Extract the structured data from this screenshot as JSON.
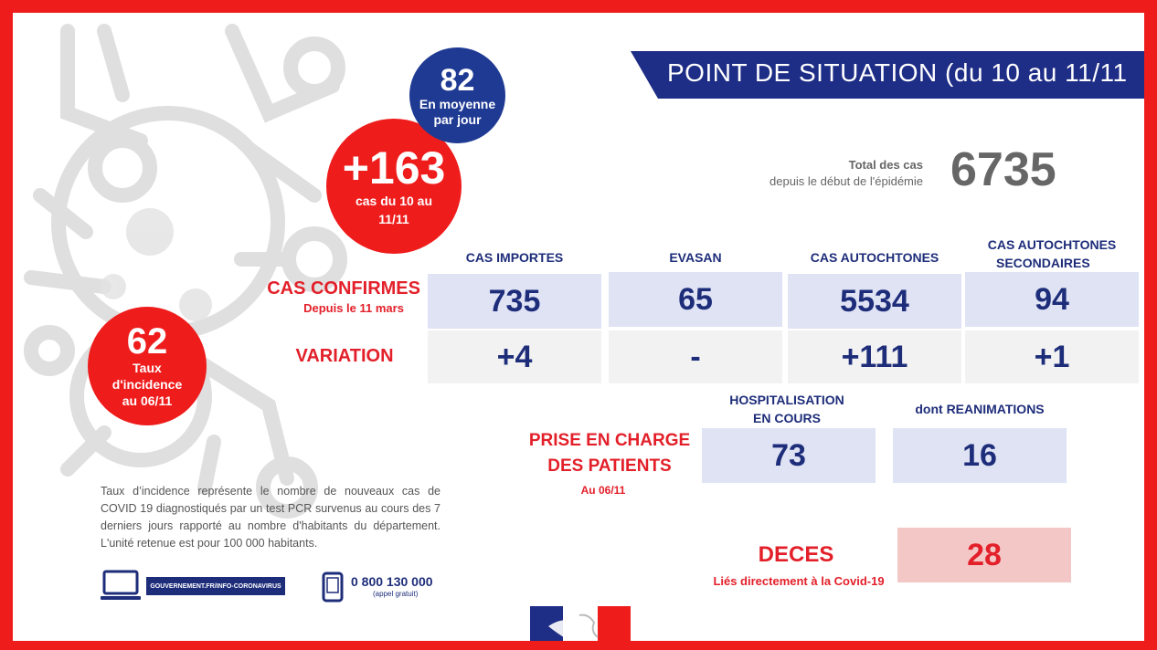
{
  "banner": {
    "title": "POINT DE SITUATION (du 10 au 11/11"
  },
  "average": {
    "value": "82",
    "label_line1": "En moyenne",
    "label_line2": "par jour"
  },
  "new_cases": {
    "value": "+163",
    "label": "cas du 10 au 11/11"
  },
  "incidence": {
    "value": "62",
    "label_line1": "Taux",
    "label_line2": "d'incidence",
    "label_line3": "au 06/11"
  },
  "total": {
    "label_line1": "Total des cas",
    "label_line2": "depuis le début de l'épidémie",
    "value": "6735"
  },
  "confirmed": {
    "row_label": "CAS CONFIRMES",
    "row_sublabel": "Depuis le 11 mars",
    "variation_label": "VARIATION",
    "columns": [
      {
        "header_line1": "CAS IMPORTES",
        "header_line2": "",
        "value": "735",
        "variation": "+4"
      },
      {
        "header_line1": "EVASAN",
        "header_line2": "",
        "value": "65",
        "variation": "-"
      },
      {
        "header_line1": "CAS AUTOCHTONES",
        "header_line2": "",
        "value": "5534",
        "variation": "+111"
      },
      {
        "header_line1": "CAS AUTOCHTONES",
        "header_line2": "SECONDAIRES",
        "value": "94",
        "variation": "+1"
      }
    ]
  },
  "patients": {
    "label_line1": "PRISE EN CHARGE",
    "label_line2": "DES PATIENTS",
    "date": "Au 06/11",
    "hosp_header_line1": "HOSPITALISATION",
    "hosp_header_line2": "EN COURS",
    "hosp_value": "73",
    "rea_header": "dont REANIMATIONS",
    "rea_value": "16"
  },
  "deaths": {
    "label": "DECES",
    "sublabel": "Liés directement à la Covid-19",
    "value": "28"
  },
  "note": "Taux d’incidence  représente le nombre de nouveaux cas de COVID 19 diagnostiqués par un test PCR survenus au cours des 7 derniers jours rapporté au nombre d'habitants du département. L'unité retenue est pour 100 000 habitants.",
  "footer": {
    "website": "GOUVERNEMENT.FR/INFO-CORONAVIRUS",
    "phone": "0 800 130 000",
    "phone_note": "(appel gratuit)"
  },
  "colors": {
    "frame_red": "#ef1c1c",
    "navy": "#1e2d7a",
    "banner_blue": "#1e2d86",
    "light_blue_box": "#dfe3f4",
    "grey_box": "#f2f2f2",
    "pink_box": "#f4c7c7"
  },
  "icons": [
    "virus-background-illustration",
    "laptop-icon",
    "phone-icon",
    "marianne-logo"
  ]
}
